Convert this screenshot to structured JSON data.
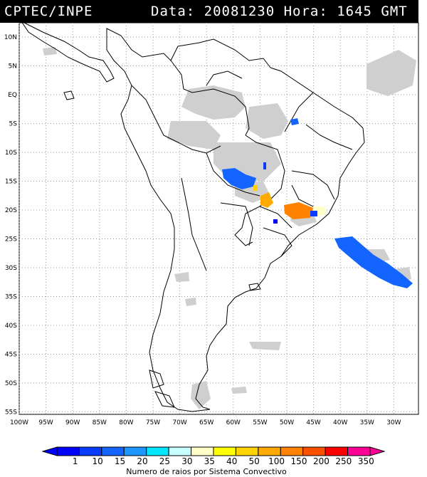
{
  "header": {
    "source": "CPTEC/INPE",
    "datetime": "Data: 20081230 Hora: 1645 GMT"
  },
  "map": {
    "lat_labels": [
      "10N",
      "5N",
      "EQ",
      "5S",
      "10S",
      "15S",
      "20S",
      "25S",
      "30S",
      "35S",
      "40S",
      "45S",
      "50S",
      "55S"
    ],
    "lon_labels": [
      "100W",
      "95W",
      "90W",
      "85W",
      "80W",
      "75W",
      "70W",
      "65W",
      "60W",
      "55W",
      "50W",
      "45W",
      "40W",
      "35W",
      "30W"
    ],
    "grid": true,
    "colors": {
      "land_border": "#000000",
      "cloud": "#c8c8c8",
      "grid": "#999999"
    }
  },
  "legend": {
    "values": [
      "1",
      "10",
      "15",
      "20",
      "25",
      "30",
      "35",
      "40",
      "50",
      "100",
      "150",
      "200",
      "250",
      "350"
    ],
    "colors": [
      "#0000ff",
      "#0a3cff",
      "#1464ff",
      "#1e96ff",
      "#00e6ff",
      "#c8ffff",
      "#ffffc8",
      "#ffff00",
      "#ffd200",
      "#ffaa00",
      "#ff8200",
      "#ff5000",
      "#ff0000",
      "#ff0096"
    ],
    "caption": "Numero de raios por Sistema Convectivo"
  }
}
